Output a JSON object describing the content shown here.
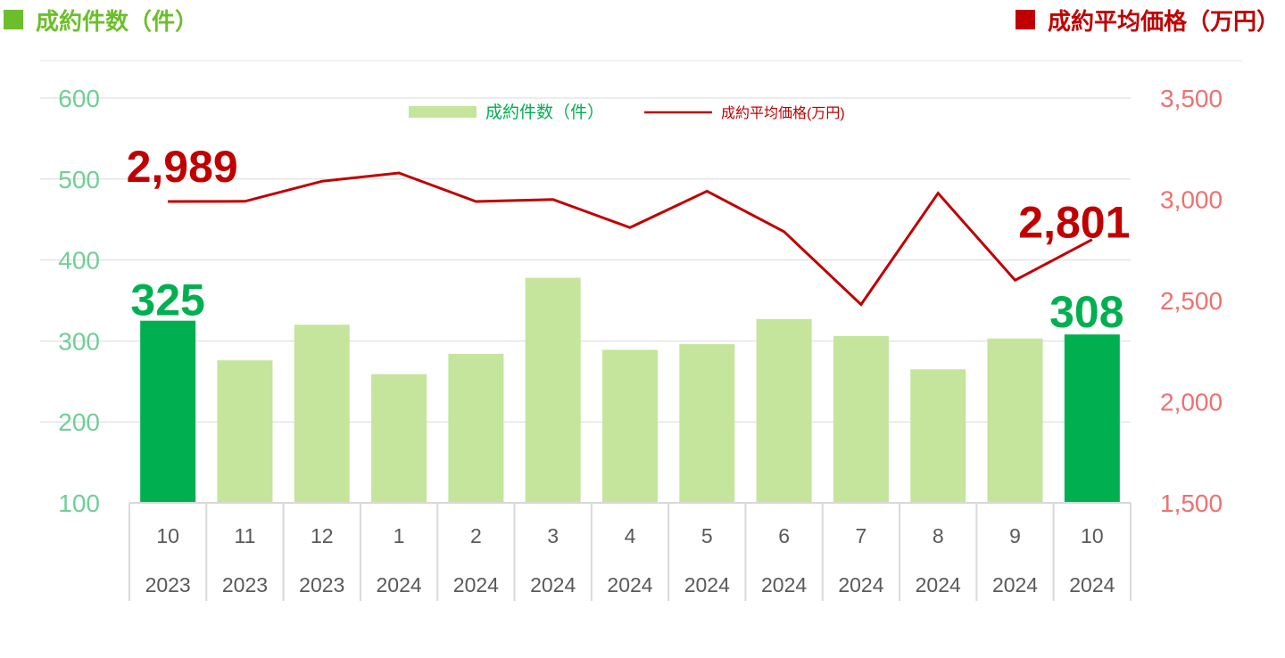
{
  "header": {
    "left_title": "成約件数（件）",
    "right_title": "成約平均価格（万円）"
  },
  "colors": {
    "bar_light": "#c4e59b",
    "bar_highlight": "#00b050",
    "line": "#c00000",
    "left_axis_text": "#6fcf97",
    "right_axis_text": "#f07070",
    "left_title": "#6cbf2a",
    "right_title": "#c00000",
    "category_text": "#595959",
    "grid": "#d9d9d9",
    "category_border": "#d9d9d9"
  },
  "chart_data": {
    "type": "bar",
    "categories": [
      "10",
      "11",
      "12",
      "1",
      "2",
      "3",
      "4",
      "5",
      "6",
      "7",
      "8",
      "9",
      "10"
    ],
    "years": [
      "2023",
      "2023",
      "2023",
      "2024",
      "2024",
      "2024",
      "2024",
      "2024",
      "2024",
      "2024",
      "2024",
      "2024",
      "2024"
    ],
    "series": [
      {
        "name": "成約件数（件）",
        "type": "bar",
        "axis": "left",
        "values": [
          325,
          276,
          320,
          259,
          284,
          378,
          289,
          296,
          327,
          306,
          265,
          303,
          308
        ]
      },
      {
        "name": "成約平均価格(万円)",
        "type": "line",
        "axis": "right",
        "values": [
          2989,
          2990,
          3089,
          3130,
          2989,
          2999,
          2860,
          3040,
          2840,
          2480,
          3030,
          2600,
          2801
        ]
      }
    ],
    "left_axis": {
      "ylim": [
        100,
        600
      ],
      "ticks": [
        "100",
        "200",
        "300",
        "400",
        "500",
        "600"
      ]
    },
    "right_axis": {
      "ylim": [
        1500,
        3500
      ],
      "ticks": [
        "1,500",
        "2,000",
        "2,500",
        "3,000",
        "3,500"
      ]
    },
    "highlight_bars": [
      0,
      12
    ],
    "data_labels": {
      "bar_first": "325",
      "bar_last": "308",
      "line_first": "2,989",
      "line_last": "2,801"
    },
    "legend_position": "top-center",
    "grid": true
  }
}
